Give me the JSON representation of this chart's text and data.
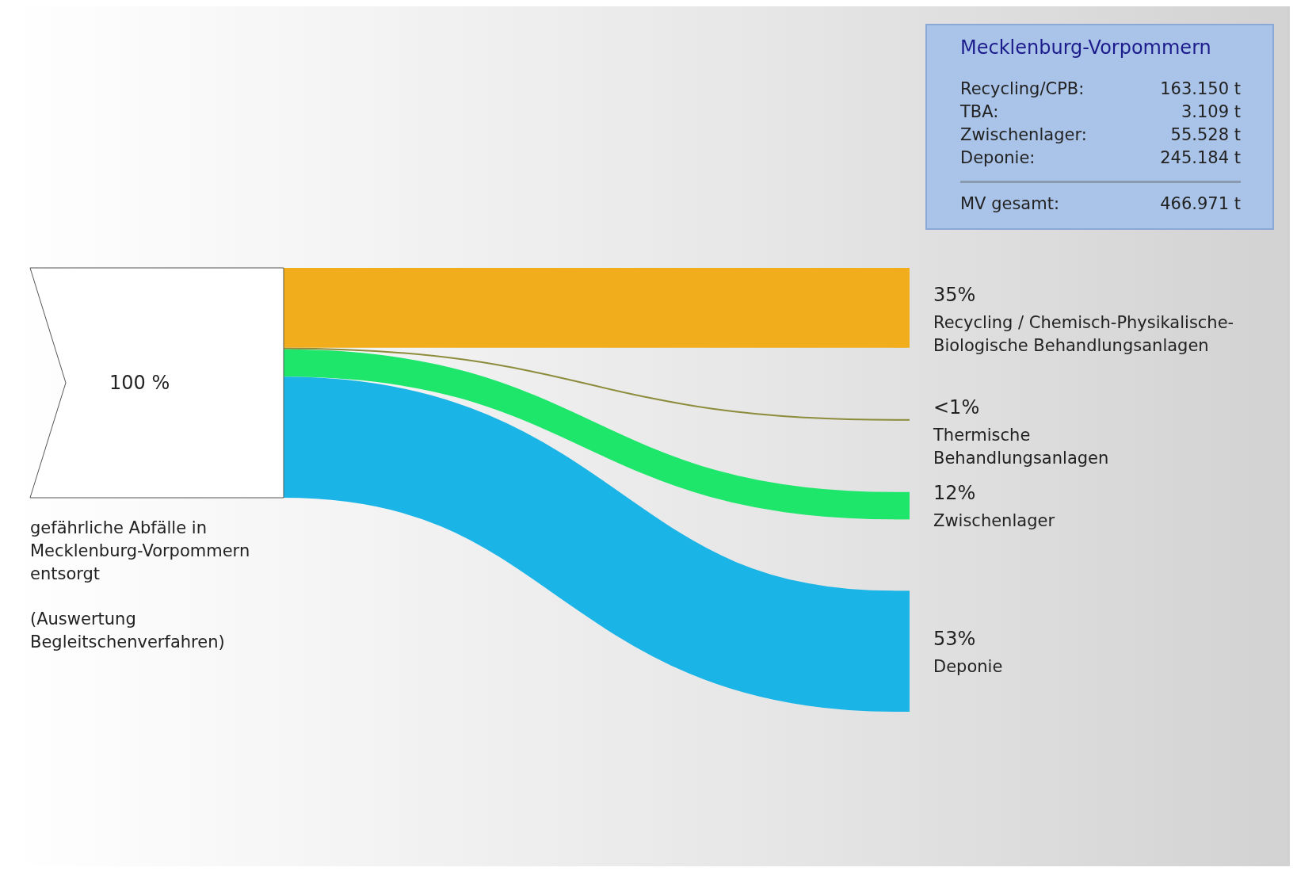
{
  "chart_data": [
    {
      "type": "other",
      "categories": [
        "Recycling / Chemisch-Physikalische-\nBiologische Behandlungsanlagen",
        "Thermische\nBehandlungsanlagen",
        "Zwischenlager",
        "Deponie"
      ],
      "values": [
        35,
        0.7,
        12,
        53
      ],
      "value_labels": [
        "35%",
        "<1%",
        "12%",
        "53%"
      ],
      "colors": [
        "#f2ad1c",
        "#8c8c3c",
        "#1ee66a",
        "#1bb4e6"
      ],
      "annotations": [
        "100 %",
        "gefährliche Abfälle in\nMecklenburg-Vorpommern\nentsorgt",
        "(Auswertung\nBegleitschenverfahren)"
      ]
    },
    {
      "type": "other",
      "title": "Mecklenburg-Vorpommern",
      "annotations": [
        "Recycling/CPB:",
        "163.150 t",
        "TBA:",
        "3.109 t",
        "Zwischenlager:",
        "55.528 t",
        "Deponie:",
        "245.184 t",
        "MV gesamt:",
        "466.971 t"
      ]
    }
  ]
}
